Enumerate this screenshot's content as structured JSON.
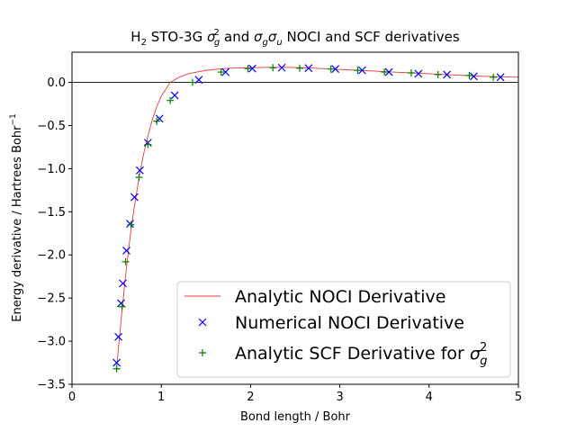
{
  "chart_data": {
    "type": "line",
    "title": {
      "prefix": "H",
      "prefix_sub": "2",
      "part1": " STO-3G ",
      "sym1": "σ",
      "sym1_sub": "g",
      "sym1_sup": "2",
      "part2": " and ",
      "sym2a": "σ",
      "sym2a_sub": "g",
      "sym2b": "σ",
      "sym2b_sub": "u",
      "part3": " NOCI and SCF derivatives"
    },
    "xlabel": "Bond length / Bohr",
    "ylabel": {
      "text": "Energy derivative / Hartrees Bohr",
      "sup": "−1"
    },
    "xlim": [
      0,
      5
    ],
    "ylim": [
      -3.5,
      0.35
    ],
    "xticks": [
      {
        "value": 0,
        "label": "0"
      },
      {
        "value": 1,
        "label": "1"
      },
      {
        "value": 2,
        "label": "2"
      },
      {
        "value": 3,
        "label": "3"
      },
      {
        "value": 4,
        "label": "4"
      },
      {
        "value": 5,
        "label": "5"
      }
    ],
    "yticks": [
      {
        "value": 0.0,
        "label": "0.0"
      },
      {
        "value": -0.5,
        "label": "−0.5"
      },
      {
        "value": -1.0,
        "label": "−1.0"
      },
      {
        "value": -1.5,
        "label": "−1.5"
      },
      {
        "value": -2.0,
        "label": "−2.0"
      },
      {
        "value": -2.5,
        "label": "−2.5"
      },
      {
        "value": -3.0,
        "label": "−3.0"
      },
      {
        "value": -3.5,
        "label": "−3.5"
      }
    ],
    "grid": false,
    "zero_line": true,
    "legend_placement": "lower-right",
    "series": [
      {
        "name": "Analytic NOCI Derivative",
        "kind": "line",
        "color": "#e8393c",
        "x": [
          0.5,
          0.52,
          0.55,
          0.58,
          0.6,
          0.63,
          0.66,
          0.7,
          0.75,
          0.8,
          0.85,
          0.9,
          0.95,
          1.0,
          1.1,
          1.2,
          1.3,
          1.4,
          1.5,
          1.6,
          1.7,
          1.8,
          2.0,
          2.2,
          2.4,
          2.6,
          2.8,
          3.0,
          3.2,
          3.4,
          3.6,
          3.8,
          4.0,
          4.2,
          4.4,
          4.6,
          4.8,
          5.0
        ],
        "y": [
          -3.32,
          -3.08,
          -2.76,
          -2.44,
          -2.24,
          -1.97,
          -1.72,
          -1.43,
          -1.11,
          -0.84,
          -0.62,
          -0.43,
          -0.28,
          -0.16,
          0.0,
          0.06,
          0.1,
          0.12,
          0.14,
          0.15,
          0.16,
          0.165,
          0.17,
          0.175,
          0.175,
          0.17,
          0.16,
          0.15,
          0.14,
          0.13,
          0.12,
          0.11,
          0.1,
          0.09,
          0.08,
          0.07,
          0.065,
          0.06
        ]
      },
      {
        "name": "Numerical NOCI Derivative",
        "kind": "marker-x",
        "color": "#0000ff",
        "x": [
          0.5,
          0.52,
          0.55,
          0.57,
          0.61,
          0.65,
          0.7,
          0.76,
          0.85,
          0.98,
          1.15,
          1.42,
          1.72,
          2.02,
          2.35,
          2.65,
          2.95,
          3.25,
          3.55,
          3.88,
          4.2,
          4.5,
          4.8
        ],
        "y": [
          -3.25,
          -2.95,
          -2.56,
          -2.33,
          -1.95,
          -1.64,
          -1.33,
          -1.02,
          -0.7,
          -0.42,
          -0.15,
          0.03,
          0.12,
          0.16,
          0.17,
          0.165,
          0.155,
          0.14,
          0.12,
          0.1,
          0.09,
          0.07,
          0.06
        ]
      },
      {
        "name": "Analytic SCF Derivative for ",
        "name_sym": "σ",
        "name_sub": "g",
        "name_sup": "2",
        "kind": "marker-plus",
        "color": "#008000",
        "x": [
          0.5,
          0.56,
          0.6,
          0.66,
          0.75,
          0.85,
          0.95,
          1.1,
          1.35,
          1.67,
          1.97,
          2.25,
          2.55,
          2.9,
          3.2,
          3.5,
          3.8,
          4.1,
          4.45,
          4.72
        ],
        "y": [
          -3.32,
          -2.6,
          -2.08,
          -1.65,
          -1.1,
          -0.72,
          -0.45,
          -0.21,
          0.0,
          0.12,
          0.16,
          0.17,
          0.165,
          0.155,
          0.14,
          0.12,
          0.11,
          0.09,
          0.08,
          0.06
        ]
      }
    ]
  }
}
